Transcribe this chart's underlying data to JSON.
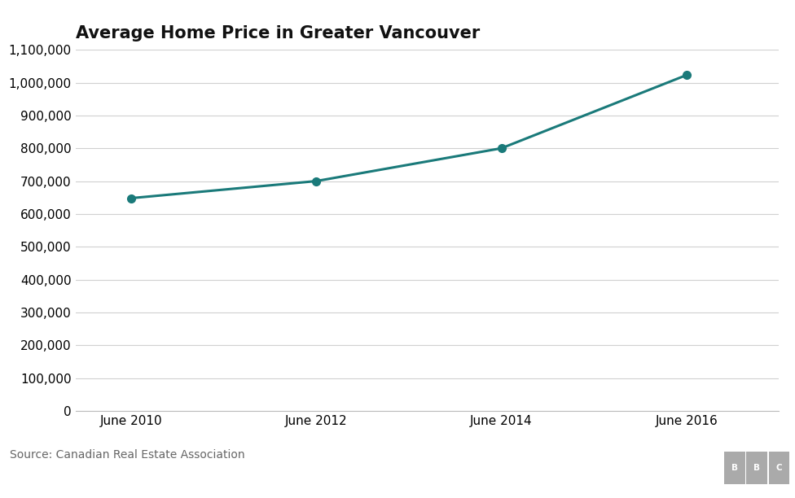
{
  "title": "Average Home Price in Greater Vancouver",
  "x_labels": [
    "June 2010",
    "June 2012",
    "June 2014",
    "June 2016"
  ],
  "x_values": [
    2010,
    2012,
    2014,
    2016
  ],
  "y_values": [
    648000,
    700000,
    800000,
    1023000
  ],
  "ylim": [
    0,
    1100000
  ],
  "yticks": [
    0,
    100000,
    200000,
    300000,
    400000,
    500000,
    600000,
    700000,
    800000,
    900000,
    1000000,
    1100000
  ],
  "line_color": "#1a7a7a",
  "marker_color": "#1a7a7a",
  "bg_color": "#ffffff",
  "plot_bg_color": "#ffffff",
  "grid_color": "#d0d0d0",
  "source_text": "Source: Canadian Real Estate Association",
  "footer_separator_color": "#cccccc",
  "bbc_box_color": "#aaaaaa",
  "bbc_text_color": "#ffffff",
  "source_text_color": "#666666",
  "title_fontsize": 15,
  "tick_fontsize": 11,
  "source_fontsize": 10
}
